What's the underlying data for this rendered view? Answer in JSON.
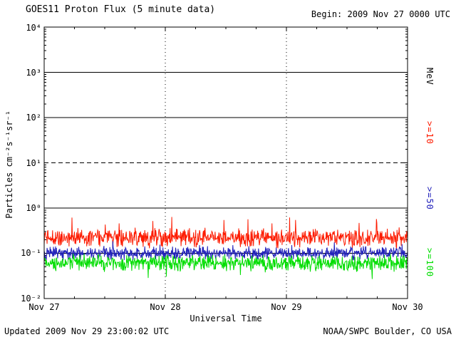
{
  "header": {
    "title": "GOES11 Proton Flux (5 minute data)",
    "begin": "Begin: 2009 Nov 27 0000 UTC"
  },
  "axes": {
    "x_label": "Universal Time",
    "y_label": "Particles cm⁻²s⁻¹sr⁻¹",
    "y_tick_labels": [
      "10⁴",
      "10³",
      "10²",
      "10¹",
      "10⁰",
      "10⁻¹",
      "10⁻²"
    ],
    "x_tick_labels": [
      "Nov 27",
      "Nov 28",
      "Nov 29",
      "Nov 30"
    ]
  },
  "legend": {
    "unit_label": "MeV",
    "entries": [
      {
        "label": ">=10",
        "color": "#fd1b00"
      },
      {
        "label": ">=50",
        "color": "#2222bb"
      },
      {
        "label": ">=100",
        "color": "#00dd00"
      }
    ]
  },
  "footer": {
    "updated": "Updated 2009 Nov 29 23:00:02 UTC",
    "source": "NOAA/SWPC Boulder, CO USA"
  },
  "chart_data": {
    "type": "line",
    "title": "GOES11 Proton Flux (5 minute data)",
    "xlabel": "Universal Time",
    "ylabel": "Particles cm^-2 s^-1 sr^-1",
    "x_ticks": [
      "Nov 27",
      "Nov 28",
      "Nov 29",
      "Nov 30"
    ],
    "x_span_days": 3,
    "y_scale": "log10",
    "ylim": [
      0.01,
      10000
    ],
    "y_ticks": [
      0.01,
      0.1,
      1,
      10,
      100,
      1000,
      10000
    ],
    "grid": {
      "solid_hlines": [
        1000,
        100,
        1,
        0.1
      ],
      "dashed_hlines": [
        10
      ],
      "dashed_vlines_at_day": [
        1,
        2
      ]
    },
    "legend_position": "right",
    "points_per_series": 864,
    "series": [
      {
        "name": ">=10 MeV",
        "color": "#fd1b00",
        "approx_mean_flux": 0.22,
        "approx_range": [
          0.1,
          0.55
        ],
        "log10_base": -0.66,
        "log10_noise_amp": 0.17,
        "spike_prob": 0.02,
        "spike_amp": 0.28
      },
      {
        "name": ">=50 MeV",
        "color": "#2222bb",
        "approx_mean_flux": 0.1,
        "approx_range": [
          0.06,
          0.18
        ],
        "log10_base": -1.0,
        "log10_noise_amp": 0.12,
        "spike_prob": 0.012,
        "spike_amp": 0.18
      },
      {
        "name": ">=100 MeV",
        "color": "#00dd00",
        "approx_mean_flux": 0.06,
        "approx_range": [
          0.03,
          0.11
        ],
        "log10_base": -1.21,
        "log10_noise_amp": 0.15,
        "spike_prob": 0.015,
        "spike_amp": -0.22
      }
    ]
  }
}
